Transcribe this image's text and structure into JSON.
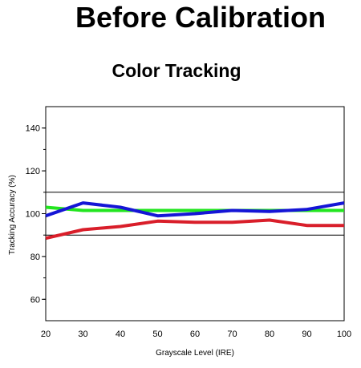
{
  "page": {
    "headline": "Before Calibration"
  },
  "chart_data": {
    "type": "line",
    "title": "Color Tracking",
    "xlabel": "Grayscale Level (IRE)",
    "ylabel": "Tracking Accuracy (%)",
    "x": [
      20,
      30,
      40,
      50,
      60,
      70,
      80,
      90,
      100
    ],
    "xticks": [
      20,
      30,
      40,
      50,
      60,
      70,
      80,
      90,
      100
    ],
    "yticks": [
      60,
      80,
      100,
      120,
      140
    ],
    "xlim": [
      20,
      100
    ],
    "ylim": [
      50,
      150
    ],
    "grid": false,
    "legend": "none",
    "reference_lines": [
      90,
      110
    ],
    "series": [
      {
        "color": "#22e51f",
        "values": [
          103,
          101.5,
          101.5,
          101.5,
          101.5,
          101.5,
          101.5,
          101.5,
          101.5
        ]
      },
      {
        "color": "#d91e2a",
        "values": [
          88.5,
          92.5,
          94,
          96.5,
          96,
          96,
          97,
          94.5,
          94.5
        ]
      },
      {
        "color": "#1515d6",
        "values": [
          99,
          105,
          103,
          99,
          100,
          101.5,
          101,
          102,
          105
        ]
      }
    ]
  }
}
